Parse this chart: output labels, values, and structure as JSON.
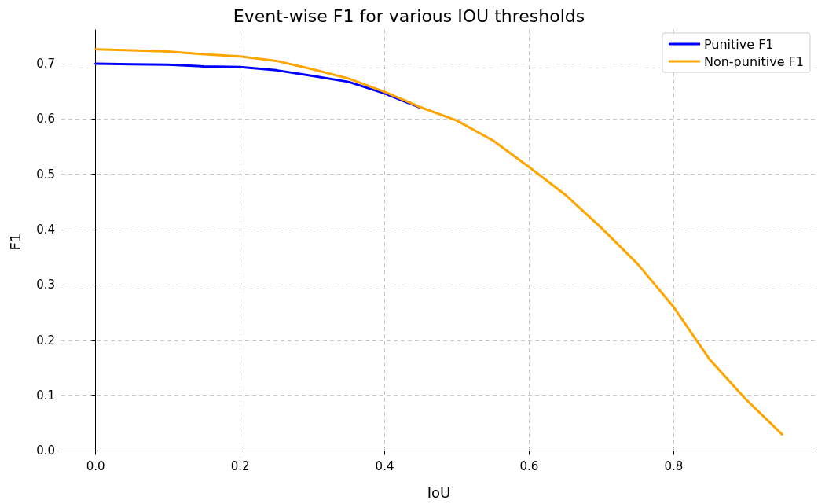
{
  "chart_data": {
    "type": "line",
    "title": "Event-wise F1 for various IOU thresholds",
    "xlabel": "IoU",
    "ylabel": "F1",
    "x": [
      0,
      0.05,
      0.1,
      0.15,
      0.2,
      0.25,
      0.3,
      0.35,
      0.4,
      0.45,
      0.5,
      0.55,
      0.6,
      0.65,
      0.7,
      0.75,
      0.8,
      0.85,
      0.9,
      0.95
    ],
    "series": [
      {
        "name": "Punitive F1",
        "color": "#0000ff",
        "values": [
          0.7,
          0.699,
          0.698,
          0.695,
          0.694,
          0.688,
          0.678,
          0.667,
          0.646,
          0.62,
          null,
          null,
          null,
          null,
          null,
          null,
          null,
          null,
          null,
          null
        ]
      },
      {
        "name": "Non-punitive F1",
        "color": "#ffa500",
        "values": [
          0.726,
          0.724,
          0.722,
          0.717,
          0.713,
          0.705,
          0.69,
          0.673,
          0.649,
          0.621,
          0.597,
          0.561,
          0.513,
          0.463,
          0.403,
          0.338,
          0.26,
          0.165,
          0.093,
          0.03
        ]
      }
    ],
    "xlim": [
      -0.0475,
      0.9975
    ],
    "xticks": [
      {
        "value": 0,
        "label": "0.0"
      },
      0.2,
      0.4,
      0.6,
      0.8
    ],
    "ylim": [
      -0.005,
      0.761
    ],
    "yticks": [
      {
        "value": 0,
        "label": "0.0"
      },
      0.1,
      0.2,
      0.3,
      0.4,
      0.5,
      0.6,
      0.7
    ],
    "grid": true,
    "legend": "top right",
    "marker": "none",
    "line_style": "solid"
  }
}
